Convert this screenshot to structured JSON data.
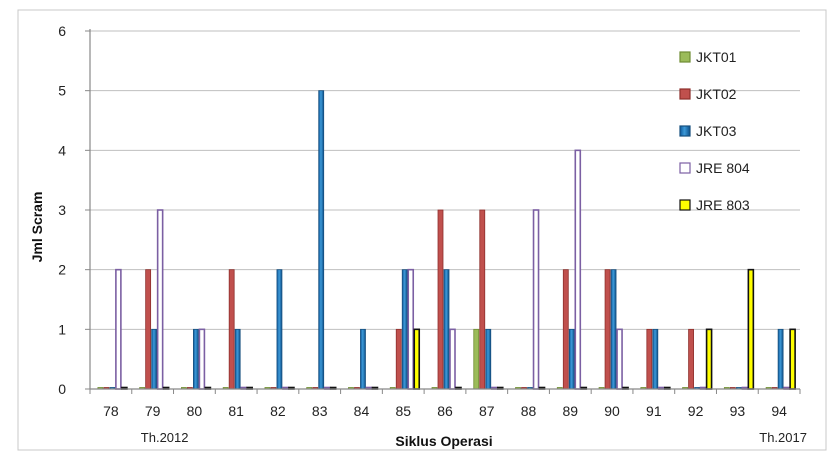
{
  "chart_data": {
    "type": "bar",
    "xlabel": "Siklus Operasi",
    "ylabel": "Jml Scram",
    "ylim": [
      0,
      6
    ],
    "yticks": [
      0,
      1,
      2,
      3,
      4,
      5,
      6
    ],
    "grid": "horizontal",
    "legend_position": "right",
    "categories": [
      "78",
      "79",
      "80",
      "81",
      "82",
      "83",
      "84",
      "85",
      "86",
      "87",
      "88",
      "89",
      "90",
      "91",
      "92",
      "93",
      "94"
    ],
    "annotations": [
      {
        "text": "Th.2012",
        "category": "79"
      },
      {
        "text": "Th.2017",
        "category": "94"
      }
    ],
    "series": [
      {
        "name": "JKT01",
        "color": "#9bbb59",
        "edge": "#6f8c32",
        "values": [
          0,
          0,
          0,
          0,
          0,
          0,
          0,
          0,
          0,
          1,
          0,
          0,
          0,
          0,
          0,
          0,
          0
        ]
      },
      {
        "name": "JKT02",
        "color": "#c0504d",
        "edge": "#8e2f2c",
        "values": [
          0,
          2,
          0,
          2,
          0,
          0,
          0,
          1,
          3,
          3,
          0,
          2,
          2,
          1,
          1,
          0,
          0
        ]
      },
      {
        "name": "JKT03",
        "color": "#1f6fb4",
        "edge": "#17507f",
        "gradient": true,
        "values": [
          0,
          1,
          1,
          1,
          2,
          5,
          1,
          2,
          2,
          1,
          0,
          1,
          2,
          1,
          0,
          0,
          1
        ]
      },
      {
        "name": "JRE 804",
        "color": "#ffffff",
        "edge": "#7b5fa3",
        "values": [
          2,
          3,
          1,
          0,
          0,
          0,
          0,
          2,
          1,
          0,
          3,
          4,
          1,
          0,
          0,
          0,
          0
        ]
      },
      {
        "name": "JRE 803",
        "color": "#ffff00",
        "edge": "#111111",
        "values": [
          0,
          0,
          0,
          0,
          0,
          0,
          0,
          1,
          0,
          0,
          0,
          0,
          0,
          0,
          1,
          2,
          1
        ]
      }
    ]
  }
}
